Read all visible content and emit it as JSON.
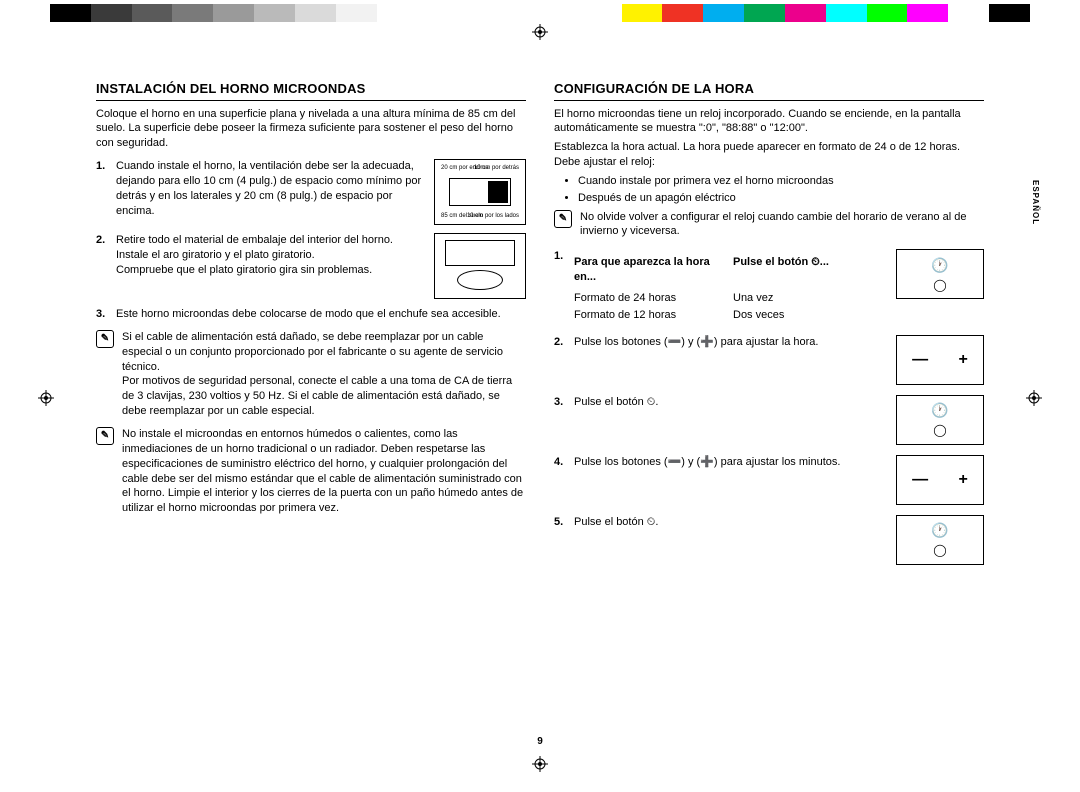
{
  "colorStrip": [
    "#000000",
    "#3a3a3a",
    "#5a5a5a",
    "#7a7a7a",
    "#9a9a9a",
    "#bababa",
    "#dadada",
    "#f2f2f2",
    "#ffffff",
    "#ffffff",
    "#ffffff",
    "#ffffff",
    "#ffffff",
    "#ffffff",
    "#fff200",
    "#ef3224",
    "#00aeef",
    "#00a651",
    "#ec008c",
    "#00ffff",
    "#00ff00",
    "#ff00ff",
    "#ffffff",
    "#000000"
  ],
  "sideLabel": "ESPAÑOL",
  "pageNumber": "9",
  "left": {
    "heading": "INSTALACIÓN DEL HORNO MICROONDAS",
    "intro": "Coloque el horno en una superficie plana y nivelada a una altura mínima de 85 cm del suelo. La superficie debe poseer la firmeza suficiente para sostener el peso del horno con seguridad.",
    "items": [
      {
        "n": "1.",
        "text": "Cuando instale el horno, la ventilación debe ser la adecuada, dejando para ello 10 cm (4 pulg.) de espacio como mínimo por detrás y en los laterales y 20 cm (8 pulg.) de espacio por encima.",
        "fig": {
          "labels": [
            "20 cm por encima",
            "10 cm por detrás",
            "85 cm del suelo",
            "10 cm por los lados"
          ]
        }
      },
      {
        "n": "2.",
        "text": "Retire todo el material de embalaje del interior del horno.",
        "extra": "Instale el aro giratorio y el plato giratorio.\nCompruebe que el plato giratorio gira sin problemas.",
        "fig": {}
      },
      {
        "n": "3.",
        "text": "Este horno microondas debe colocarse de modo que el enchufe sea accesible."
      }
    ],
    "notes": [
      "Si el cable de alimentación está dañado, se debe reemplazar por un cable especial o un conjunto proporcionado por el fabricante o su agente de servicio técnico.\nPor motivos de seguridad personal, conecte el cable a una toma de CA de tierra de 3 clavijas, 230 voltios y 50 Hz. Si el cable de alimentación está dañado, se debe reemplazar por un cable especial.",
      "No instale el microondas en entornos húmedos o calientes, como las inmediaciones de un horno tradicional o un radiador. Deben respetarse las especificaciones de suministro eléctrico del horno, y cualquier prolongación del cable debe ser del mismo estándar que el cable de alimentación suministrado con el horno. Limpie el interior y los cierres de la puerta con un paño húmedo antes de utilizar el horno microondas por primera vez."
    ]
  },
  "right": {
    "heading": "CONFIGURACIÓN DE LA HORA",
    "intro1": "El horno microondas tiene un reloj incorporado. Cuando se enciende, en la pantalla automáticamente se muestra \":0\", \"88:88\" o \"12:00\".",
    "intro2": "Establezca la hora actual. La hora puede aparecer en formato de 24 o de 12 horas. Debe ajustar el reloj:",
    "bullets": [
      "Cuando instale por primera vez el horno microondas",
      "Después de un apagón eléctrico"
    ],
    "note": "No olvide volver a configurar el reloj cuando cambie del horario de verano al de invierno y viceversa.",
    "tableHead": {
      "c1": "Para que aparezca la hora en...",
      "c2": "Pulse el botón ⏲..."
    },
    "tableRows": [
      {
        "c1": "Formato de 24 horas",
        "c2": "Una vez"
      },
      {
        "c1": "Formato de 12 horas",
        "c2": "Dos veces"
      }
    ],
    "steps": [
      {
        "n": "2.",
        "text": "Pulse los botones (➖) y (➕) para ajustar la hora.",
        "panel": "pm"
      },
      {
        "n": "3.",
        "text": "Pulse el botón ⏲.",
        "panel": "clock"
      },
      {
        "n": "4.",
        "text": "Pulse los botones (➖) y (➕) para ajustar los minutos.",
        "panel": "pm"
      },
      {
        "n": "5.",
        "text": "Pulse el botón ⏲.",
        "panel": "clock"
      }
    ]
  }
}
